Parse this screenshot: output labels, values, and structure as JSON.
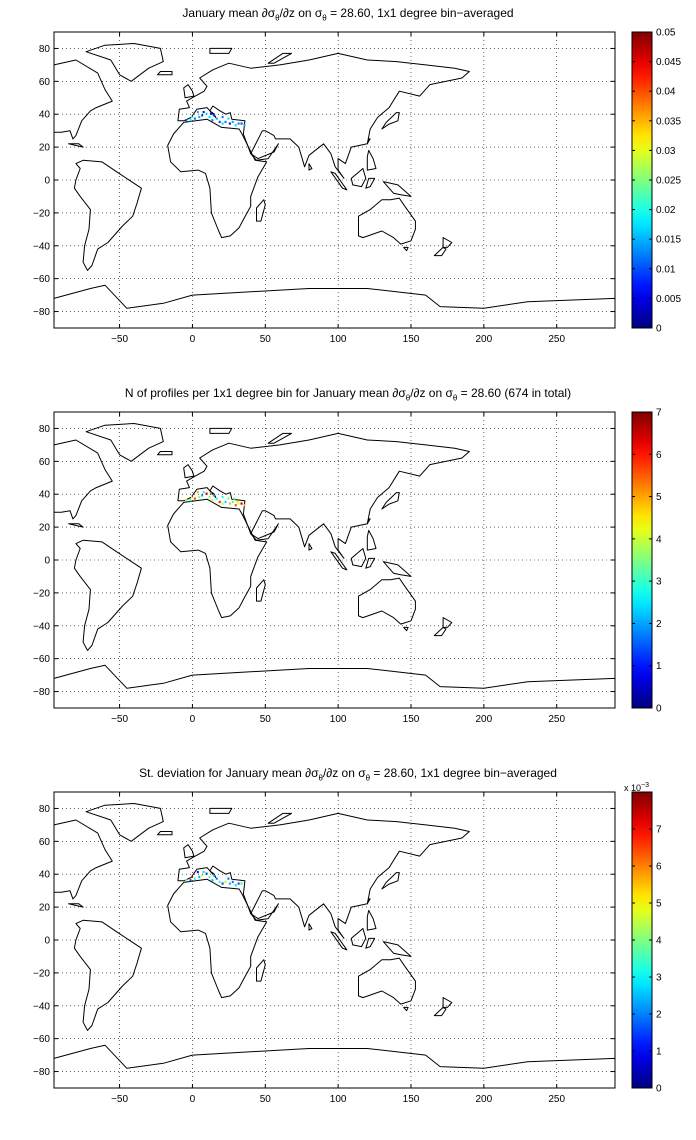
{
  "map_common": {
    "x_ticks": [
      -50,
      0,
      50,
      100,
      150,
      200,
      250
    ],
    "y_ticks": [
      80,
      60,
      40,
      20,
      0,
      -20,
      -40,
      -60,
      -80
    ],
    "xlim": [
      -95,
      290
    ],
    "ylim": [
      -90,
      90
    ],
    "grid": "dotted",
    "colormap": "jet",
    "colorbar_position": "right"
  },
  "panels": [
    {
      "title": {
        "pre": "January mean ∂σ",
        "s1": "θ",
        "mid": "/∂z on σ",
        "s2": "θ",
        "post": " = 28.60, 1x1 degree bin−averaged"
      },
      "colorbar": {
        "range": [
          0,
          0.05
        ],
        "tick_labels": [
          "0.05",
          "0.045",
          "0.04",
          "0.035",
          "0.03",
          "0.025",
          "0.02",
          "0.015",
          "0.01",
          "0.005",
          "0"
        ],
        "exponent": ""
      },
      "region": "Mediterranean Sea"
    },
    {
      "title": {
        "pre": "N of profiles per 1x1 degree bin for January mean ∂σ",
        "s1": "θ",
        "mid": "/∂z on σ",
        "s2": "θ",
        "post": " = 28.60 (674 in total)"
      },
      "colorbar": {
        "range": [
          0,
          7
        ],
        "tick_labels": [
          "7",
          "6",
          "5",
          "4",
          "3",
          "2",
          "1",
          "0"
        ],
        "exponent": ""
      },
      "region": "Mediterranean Sea"
    },
    {
      "title": {
        "pre": "St. deviation for January mean ∂σ",
        "s1": "θ",
        "mid": "/∂z on σ",
        "s2": "θ",
        "post": " = 28.60, 1x1 degree bin−averaged"
      },
      "colorbar": {
        "range": [
          0,
          8
        ],
        "tick_labels": [
          "",
          "7",
          "6",
          "5",
          "4",
          "3",
          "2",
          "1",
          "0"
        ],
        "exponent_base": "x 10",
        "exponent": "−3"
      },
      "region": "Mediterranean Sea"
    }
  ]
}
